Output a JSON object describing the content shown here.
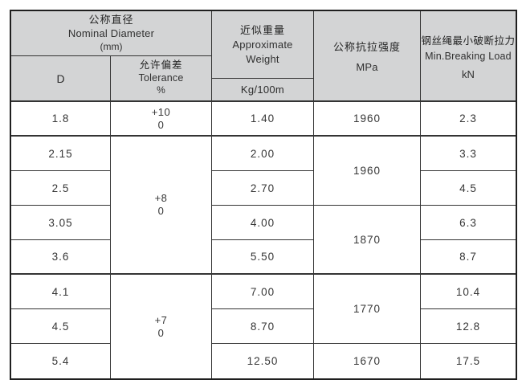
{
  "header": {
    "nominal": {
      "zh": "公称直径",
      "en": "Nominal Diameter",
      "unit": "(mm)"
    },
    "d_label": "D",
    "tolerance": {
      "zh": "允许偏差",
      "en": "Tolerance",
      "unit": "%"
    },
    "weight": {
      "zh": "近似重量",
      "en": "Approximate Weight",
      "unit": "Kg/100m"
    },
    "strength": {
      "zh": "公称抗拉强度",
      "en": "MPa"
    },
    "breaking": {
      "zh": "钢丝绳最小破断拉力",
      "en": "Min.Breaking Load",
      "unit": "kN"
    }
  },
  "rows": [
    {
      "d": "1.8",
      "weight": "1.40",
      "strength": "1960",
      "breaking": "2.3",
      "tol_top": "+10",
      "tol_bottom": "0"
    },
    {
      "d": "2.15",
      "weight": "2.00",
      "strength": "1960",
      "breaking": "3.3",
      "tol_top": "+8",
      "tol_bottom": "0"
    },
    {
      "d": "2.5",
      "weight": "2.70",
      "breaking": "4.5"
    },
    {
      "d": "3.05",
      "weight": "4.00",
      "strength": "1870",
      "breaking": "6.3"
    },
    {
      "d": "3.6",
      "weight": "5.50",
      "breaking": "8.7"
    },
    {
      "d": "4.1",
      "weight": "7.00",
      "strength": "1770",
      "breaking": "10.4",
      "tol_top": "+7",
      "tol_bottom": "0"
    },
    {
      "d": "4.5",
      "weight": "8.70",
      "breaking": "12.8"
    },
    {
      "d": "5.4",
      "weight": "12.50",
      "strength": "1670",
      "breaking": "17.5"
    }
  ],
  "colors": {
    "header_bg": "#d3d4d5",
    "border": "#343434",
    "text": "#363636"
  }
}
